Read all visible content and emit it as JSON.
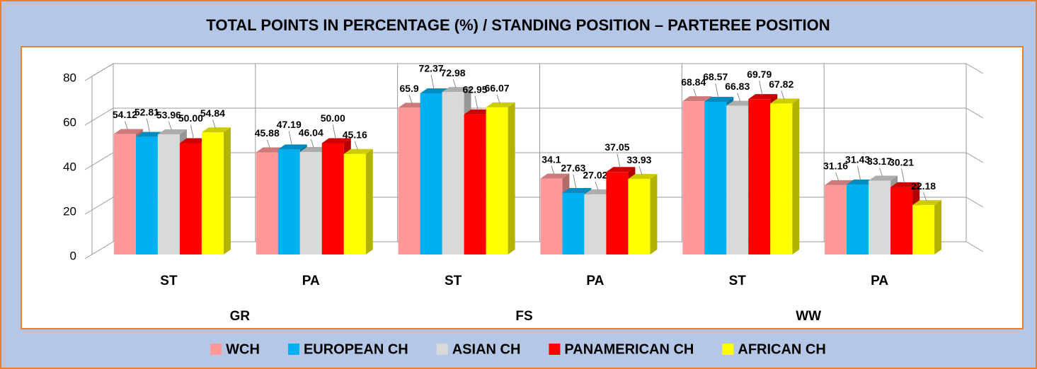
{
  "chart_data": {
    "type": "bar3d",
    "title": "TOTAL POINTS IN PERCENTAGE (%) / STANDING POSITION – PARTEREE POSITION",
    "categories": [
      "ST",
      "PA",
      "ST",
      "PA",
      "ST",
      "PA"
    ],
    "groups": [
      "GR",
      "FS",
      "WW"
    ],
    "series": [
      {
        "name": "WCH",
        "color": "#ff9999",
        "values": [
          54.12,
          45.88,
          65.9,
          34.1,
          68.84,
          31.16
        ],
        "value_labels": [
          "54.12",
          "45.88",
          "65.9",
          "34.1",
          "68.84",
          "31.16"
        ]
      },
      {
        "name": "EUROPEAN CH",
        "color": "#00b0f0",
        "values": [
          52.81,
          47.19,
          72.37,
          27.63,
          68.57,
          31.43
        ],
        "value_labels": [
          "52.81",
          "47.19",
          "72.37",
          "27.63",
          "68.57",
          "31.43"
        ]
      },
      {
        "name": "ASIAN CH",
        "color": "#d9d9d9",
        "values": [
          53.96,
          46.04,
          72.98,
          27.02,
          66.83,
          33.17
        ],
        "value_labels": [
          "53.96",
          "46.04",
          "72.98",
          "27.02",
          "66.83",
          "33.17"
        ]
      },
      {
        "name": "PANAMERICAN CH",
        "color": "#ff0000",
        "values": [
          50.0,
          50.0,
          62.95,
          37.05,
          69.79,
          30.21
        ],
        "value_labels": [
          "50.00",
          "50.00",
          "62.95",
          "37.05",
          "69.79",
          "30.21"
        ]
      },
      {
        "name": "AFRICAN CH",
        "color": "#ffff00",
        "values": [
          54.84,
          45.16,
          66.07,
          33.93,
          67.82,
          22.18
        ],
        "value_labels": [
          "54.84",
          "45.16",
          "66.07",
          "33.93",
          "67.82",
          "22.18"
        ]
      }
    ],
    "ylim": [
      0,
      80
    ],
    "yticks": [
      0,
      20,
      40,
      60,
      80
    ],
    "grid": true,
    "legend": "bottom"
  }
}
